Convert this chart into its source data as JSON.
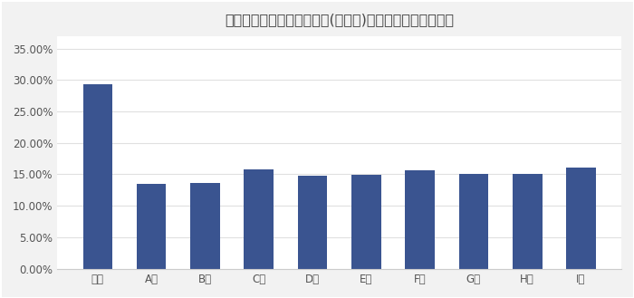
{
  "title": "利用満足度の高いスポーツ(体育会)学生就活支援サービス",
  "categories": [
    "御社",
    "A社",
    "B社",
    "C社",
    "D社",
    "E社",
    "F社",
    "G社",
    "H社",
    "I社"
  ],
  "values": [
    0.294,
    0.135,
    0.136,
    0.158,
    0.148,
    0.149,
    0.157,
    0.15,
    0.151,
    0.161
  ],
  "bar_color": "#3A5490",
  "background_color": "#F2F2F2",
  "plot_bg_color": "#FFFFFF",
  "ylim": [
    0,
    0.37
  ],
  "yticks": [
    0.0,
    0.05,
    0.1,
    0.15,
    0.2,
    0.25,
    0.3,
    0.35
  ],
  "title_fontsize": 11.5,
  "tick_fontsize": 8.5,
  "grid_color": "#E0E0E0",
  "spine_color": "#CCCCCC"
}
